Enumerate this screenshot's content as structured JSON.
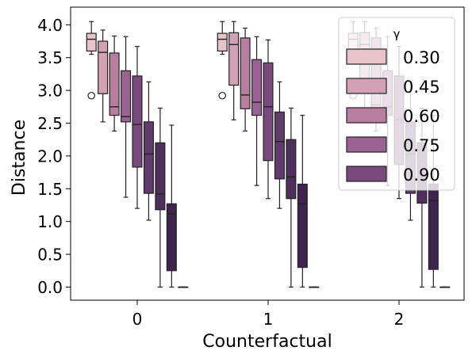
{
  "chart_data": {
    "type": "box",
    "title": "",
    "xlabel": "Counterfactual",
    "ylabel": "Distance",
    "categories": [
      "0",
      "1",
      "2"
    ],
    "ylim": [
      -0.2,
      4.27
    ],
    "yticks": [
      "0.0",
      "0.5",
      "1.0",
      "1.5",
      "2.0",
      "2.5",
      "3.0",
      "3.5",
      "4.0"
    ],
    "grid": false,
    "legend": {
      "title": "γ",
      "placement": "upper right"
    },
    "series": [
      {
        "name": "0.30",
        "color": "#e8c3ca",
        "boxes": [
          {
            "whislo": 3.55,
            "q1": 3.6,
            "med": 3.78,
            "q3": 3.87,
            "whishi": 4.05,
            "fliers": [
              2.92
            ]
          },
          {
            "whislo": 3.55,
            "q1": 3.6,
            "med": 3.78,
            "q3": 3.87,
            "whishi": 4.05,
            "fliers": [
              2.92
            ]
          },
          {
            "whislo": 3.55,
            "q1": 3.6,
            "med": 3.78,
            "q3": 3.87,
            "whishi": 4.05,
            "fliers": [
              2.92
            ]
          }
        ]
      },
      {
        "name": "0.45",
        "color": "#d2a2b4",
        "boxes": [
          {
            "whislo": 2.52,
            "q1": 2.95,
            "med": 3.58,
            "q3": 3.75,
            "whishi": 3.92,
            "fliers": []
          },
          {
            "whislo": 2.55,
            "q1": 3.08,
            "med": 3.7,
            "q3": 3.88,
            "whishi": 4.05,
            "fliers": []
          },
          {
            "whislo": 2.55,
            "q1": 3.08,
            "med": 3.7,
            "q3": 3.88,
            "whishi": 4.05,
            "fliers": []
          }
        ]
      },
      {
        "name": "0.60",
        "color": "#b77ea0",
        "boxes": [
          {
            "whislo": 2.38,
            "q1": 2.62,
            "med": 2.75,
            "q3": 3.57,
            "whishi": 3.83,
            "fliers": []
          },
          {
            "whislo": 2.38,
            "q1": 2.72,
            "med": 2.93,
            "q3": 3.8,
            "whishi": 3.95,
            "fliers": []
          },
          {
            "whislo": 2.38,
            "q1": 2.72,
            "med": 2.78,
            "q3": 3.8,
            "whishi": 3.95,
            "fliers": []
          }
        ]
      },
      {
        "name": "0.75",
        "color": "#9a6393",
        "boxes": [
          {
            "whislo": 1.37,
            "q1": 2.52,
            "med": 2.6,
            "q3": 3.3,
            "whishi": 3.82,
            "fliers": []
          },
          {
            "whislo": 1.55,
            "q1": 2.62,
            "med": 2.82,
            "q3": 3.47,
            "whishi": 3.82,
            "fliers": []
          },
          {
            "whislo": 1.55,
            "q1": 2.62,
            "med": 2.75,
            "q3": 3.3,
            "whishi": 3.82,
            "fliers": []
          }
        ]
      },
      {
        "name": "0.90",
        "color": "#7a4a7f",
        "boxes": [
          {
            "whislo": 1.2,
            "q1": 1.83,
            "med": 2.48,
            "q3": 3.22,
            "whishi": 3.67,
            "fliers": []
          },
          {
            "whislo": 1.35,
            "q1": 1.93,
            "med": 2.75,
            "q3": 3.42,
            "whishi": 3.77,
            "fliers": []
          },
          {
            "whislo": 1.35,
            "q1": 1.87,
            "med": 2.55,
            "q3": 3.22,
            "whishi": 3.67,
            "fliers": []
          }
        ]
      },
      {
        "name": "",
        "color": "#623b6d",
        "boxes": [
          {
            "whislo": 1.02,
            "q1": 1.43,
            "med": 2.03,
            "q3": 2.52,
            "whishi": 3.13,
            "fliers": []
          },
          {
            "whislo": 1.2,
            "q1": 1.65,
            "med": 2.22,
            "q3": 2.67,
            "whishi": 3.13,
            "fliers": []
          },
          {
            "whislo": 1.02,
            "q1": 1.43,
            "med": 2.03,
            "q3": 2.52,
            "whishi": 3.13,
            "fliers": []
          }
        ]
      },
      {
        "name": "",
        "color": "#4f2f5c",
        "boxes": [
          {
            "whislo": 0.0,
            "q1": 1.18,
            "med": 1.42,
            "q3": 2.2,
            "whishi": 2.73,
            "fliers": []
          },
          {
            "whislo": 0.0,
            "q1": 1.35,
            "med": 1.68,
            "q3": 2.25,
            "whishi": 2.73,
            "fliers": []
          },
          {
            "whislo": 0.0,
            "q1": 1.28,
            "med": 1.48,
            "q3": 2.2,
            "whishi": 2.73,
            "fliers": []
          }
        ]
      },
      {
        "name": "",
        "color": "#3f2450",
        "boxes": [
          {
            "whislo": 0.0,
            "q1": 0.25,
            "med": 1.12,
            "q3": 1.27,
            "whishi": 2.47,
            "fliers": []
          },
          {
            "whislo": 0.0,
            "q1": 0.3,
            "med": 1.27,
            "q3": 1.57,
            "whishi": 2.62,
            "fliers": []
          },
          {
            "whislo": 0.0,
            "q1": 0.27,
            "med": 1.32,
            "q3": 1.57,
            "whishi": 2.62,
            "fliers": []
          }
        ]
      },
      {
        "name": "",
        "color": "#2e1a3e",
        "boxes": [
          {
            "whislo": 0.0,
            "q1": 0.0,
            "med": 0.0,
            "q3": 0.0,
            "whishi": 0.0,
            "fliers": []
          },
          {
            "whislo": 0.0,
            "q1": 0.0,
            "med": 0.0,
            "q3": 0.0,
            "whishi": 0.0,
            "fliers": []
          },
          {
            "whislo": 0.0,
            "q1": 0.0,
            "med": 0.0,
            "q3": 0.0,
            "whishi": 0.0,
            "fliers": []
          }
        ]
      }
    ]
  }
}
